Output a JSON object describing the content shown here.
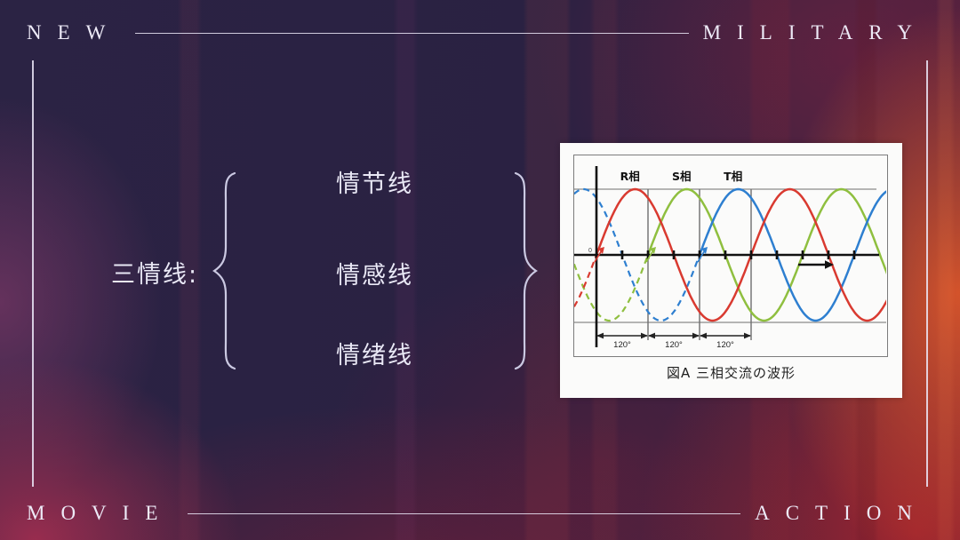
{
  "frame": {
    "top_left": "NEW",
    "top_right": "MILITARY",
    "bottom_left": "MOVIE",
    "bottom_right": "ACTION"
  },
  "diagram": {
    "label": "三情线:",
    "items": [
      "情节线",
      "情感线",
      "情绪线"
    ]
  },
  "chart_data": {
    "type": "line",
    "title": "図A 三相交流の波形",
    "subtitle": "",
    "x_unit": "degrees",
    "x_range_deg": [
      -52,
      680
    ],
    "ylim": [
      -1,
      1
    ],
    "amplitude": 1,
    "period_deg": 360,
    "phase_shift_between_series_deg": 120,
    "series": [
      {
        "name": "R相",
        "color": "#d93a30",
        "phase_deg": 0,
        "dashed_before_deg": 0
      },
      {
        "name": "S相",
        "color": "#8fbf3f",
        "phase_deg": 120,
        "dashed_before_deg": 120
      },
      {
        "name": "T相",
        "color": "#2e7fd0",
        "phase_deg": 240,
        "dashed_before_deg": 240
      }
    ],
    "gridlines": {
      "horizontal_bounds_at": [
        1,
        -1
      ],
      "vertical_at_deg": [
        120,
        240,
        360
      ],
      "x_ticks_every_deg": 60
    },
    "interval_labels": [
      "120°",
      "120°",
      "120°"
    ],
    "origin_label": "0",
    "direction_arrow": "right",
    "legend_position": "labels-above-curves"
  },
  "colors": {
    "background_base": "#2a2142",
    "background_glow_red": "#c7412c",
    "frame_line": "#ece8f8",
    "text_light": "#e9e8f5",
    "card_background": "#fbfbfa"
  }
}
